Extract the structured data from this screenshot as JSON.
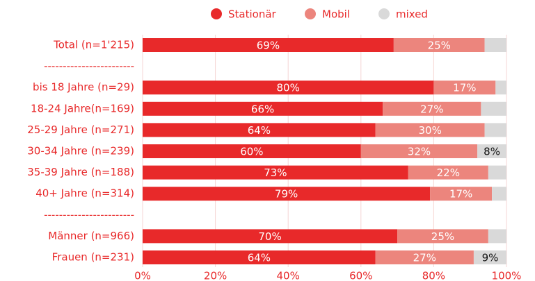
{
  "chart_data": {
    "type": "stacked-bar-horizontal",
    "categories": [
      "Total (n=1'215)",
      "------------------------",
      "bis 18 Jahre (n=29)",
      "18-24 Jahre(n=169)",
      "25-29 Jahre (n=271)",
      "30-34 Jahre (n=239)",
      "35-39 Jahre (n=188)",
      "40+ Jahre (n=314)",
      "------------------------",
      "Männer (n=966)",
      "Frauen (n=231)"
    ],
    "series": [
      {
        "name": "Stationär",
        "color": "#e8292a",
        "label_color": "#ffffff",
        "values": [
          69,
          null,
          80,
          66,
          64,
          60,
          73,
          79,
          null,
          70,
          64
        ],
        "value_labels": [
          "69%",
          null,
          "80%",
          "66%",
          "64%",
          "60%",
          "73%",
          "79%",
          null,
          "70%",
          "64%"
        ]
      },
      {
        "name": "Mobil",
        "color": "#ec857d",
        "label_color": "#ffffff",
        "values": [
          25,
          null,
          17,
          27,
          30,
          32,
          22,
          17,
          null,
          25,
          27
        ],
        "value_labels": [
          "25%",
          null,
          "17%",
          "27%",
          "30%",
          "32%",
          "22%",
          "17%",
          null,
          "25%",
          "27%"
        ]
      },
      {
        "name": "mixed",
        "color": "#d9d9d9",
        "label_color": "#111111",
        "values": [
          6,
          null,
          3,
          7,
          6,
          8,
          5,
          4,
          null,
          5,
          9
        ],
        "value_labels": [
          null,
          null,
          null,
          null,
          null,
          "8%",
          null,
          null,
          null,
          null,
          "9%"
        ]
      }
    ],
    "xlim": [
      0,
      100
    ],
    "xticks": [
      {
        "value": 0,
        "label": "0%"
      },
      {
        "value": 20,
        "label": "20%"
      },
      {
        "value": 40,
        "label": "40%"
      },
      {
        "value": 60,
        "label": "60%"
      },
      {
        "value": 80,
        "label": "80%"
      },
      {
        "value": 100,
        "label": "100%"
      }
    ],
    "grid": true,
    "legend": "top",
    "label_color": "#e8292a"
  }
}
